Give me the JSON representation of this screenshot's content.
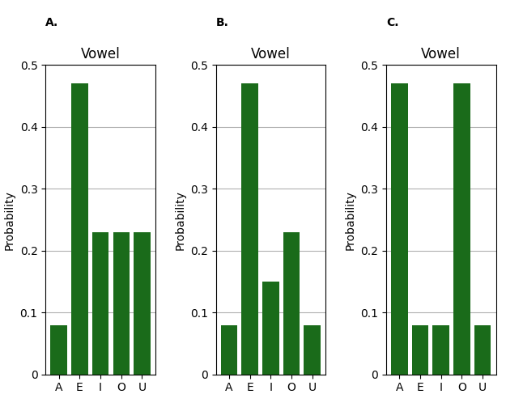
{
  "chart_data": [
    {
      "type": "bar",
      "subtitle": "A.",
      "title": "Vowel",
      "y_label": "Probability",
      "categories": [
        "A",
        "E",
        "I",
        "O",
        "U"
      ],
      "values": [
        0.08,
        0.47,
        0.23,
        0.23,
        0.23
      ],
      "color": "#1a6b1a",
      "ylim": [
        0,
        0.5
      ],
      "yticks": [
        0,
        0.1,
        0.2,
        0.3,
        0.4,
        0.5
      ],
      "grid": true
    },
    {
      "type": "bar",
      "subtitle": "B.",
      "title": "Vowel",
      "y_label": "Probability",
      "categories": [
        "A",
        "E",
        "I",
        "O",
        "U"
      ],
      "values": [
        0.08,
        0.47,
        0.15,
        0.23,
        0.08
      ],
      "color": "#1a6b1a",
      "ylim": [
        0,
        0.5
      ],
      "yticks": [
        0,
        0.1,
        0.2,
        0.3,
        0.4,
        0.5
      ],
      "grid": true
    },
    {
      "type": "bar",
      "subtitle": "C.",
      "title": "Vowel",
      "y_label": "Probability",
      "categories": [
        "A",
        "E",
        "I",
        "O",
        "U"
      ],
      "values": [
        0.47,
        0.08,
        0.08,
        0.47,
        0.08
      ],
      "color": "#1a6b1a",
      "ylim": [
        0,
        0.5
      ],
      "yticks": [
        0,
        0.1,
        0.2,
        0.3,
        0.4,
        0.5
      ],
      "grid": true
    }
  ]
}
